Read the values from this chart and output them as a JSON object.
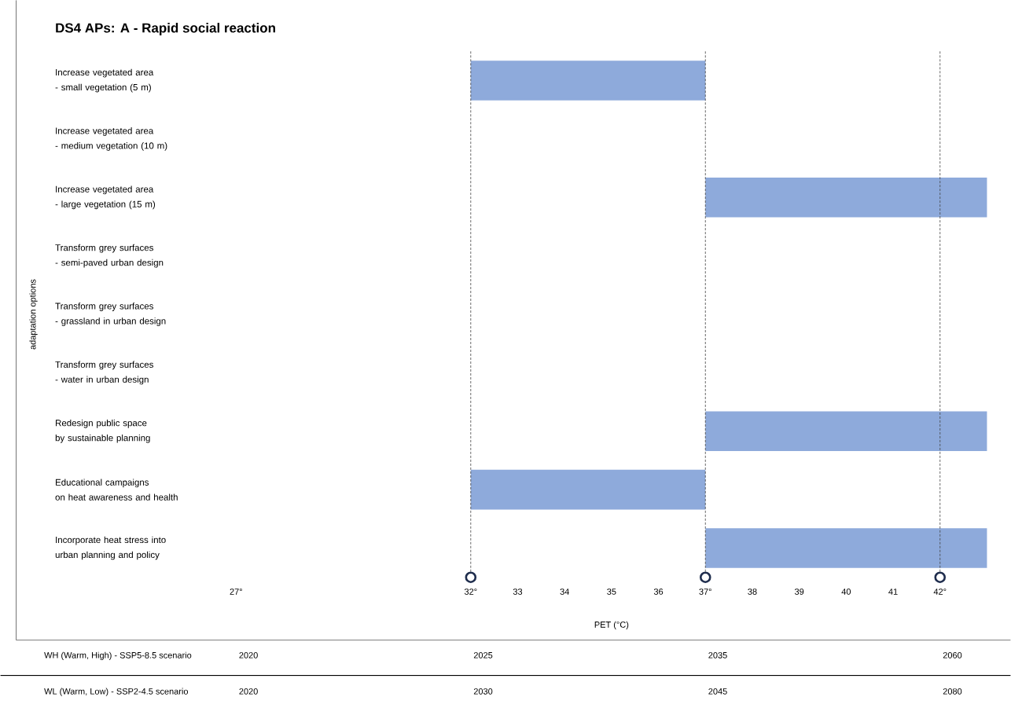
{
  "chart_data": {
    "type": "bar",
    "orientation": "horizontal",
    "title": "DS4 APs: A - Rapid social reaction",
    "xlabel": "PET (°C)",
    "ylabel": "adaptation options",
    "categories": [
      "Increase vegetated area\n- small vegetation (5 m)",
      "Increase vegetated area\n- medium vegetation (10 m)",
      "Increase vegetated area\n- large vegetation (15 m)",
      "Transform grey surfaces\n- semi-paved urban design",
      "Transform grey surfaces\n- grassland in urban design",
      "Transform grey surfaces\n- water in urban design",
      "Redesign public space\nby sustainable planning",
      "Educational campaigns\non heat awareness and health",
      "Incorporate heat stress into\nurban planning and policy"
    ],
    "values": [
      5,
      null,
      6,
      null,
      null,
      null,
      6,
      5,
      6
    ],
    "base": [
      32,
      null,
      37,
      null,
      null,
      null,
      37,
      32,
      37
    ],
    "color": "#8eaadb",
    "xlim": [
      27,
      43
    ],
    "xticks": [
      {
        "value": 27,
        "label": "27°"
      },
      {
        "value": 32,
        "label": "32°"
      },
      33,
      34,
      35,
      36,
      {
        "value": 37,
        "label": "37°"
      },
      38,
      39,
      40,
      41,
      {
        "value": 42,
        "label": "42°"
      }
    ],
    "ref_lines": [
      {
        "axis": "x",
        "value": 32,
        "color": "#404040",
        "line_style": "dashed"
      },
      {
        "axis": "x",
        "value": 37,
        "color": "#404040",
        "line_style": "dashed"
      },
      {
        "axis": "x",
        "value": 42,
        "color": "#404040",
        "line_style": "dashed"
      }
    ],
    "annotations": [
      "WH (Warm, High) - SSP5-8.5 scenario",
      "2020",
      "2025",
      "2035",
      "2060",
      "WL (Warm, Low) - SSP2-4.5 scenario",
      "2020",
      "2030",
      "2045",
      "2080"
    ],
    "grid": false
  }
}
